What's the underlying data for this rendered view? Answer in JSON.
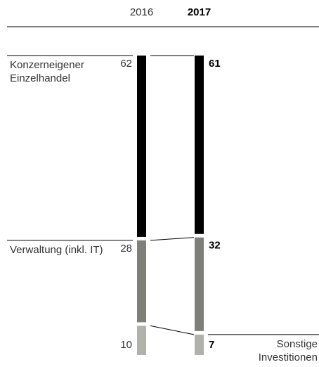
{
  "chart_data": {
    "type": "bar",
    "stacked": true,
    "categories": [
      "2016",
      "2017"
    ],
    "series": [
      {
        "name": "Konzerneigener Einzelhandel",
        "color": "#000000",
        "values": [
          62,
          61
        ]
      },
      {
        "name": "Verwaltung (inkl. IT)",
        "color": "#7f7f7a",
        "values": [
          28,
          32
        ]
      },
      {
        "name": "Sonstige Investitionen",
        "color": "#b1b1ac",
        "values": [
          10,
          7
        ]
      }
    ]
  }
}
